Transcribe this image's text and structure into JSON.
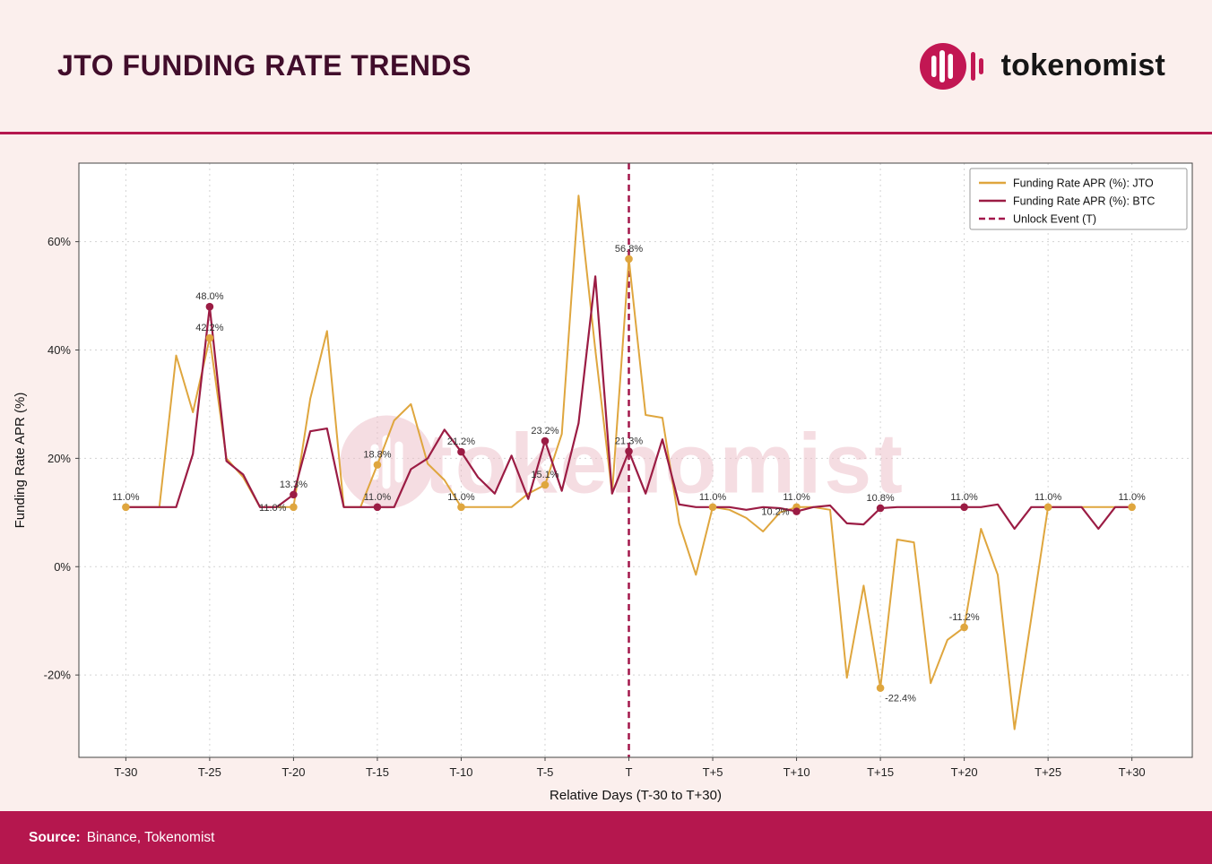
{
  "header": {
    "title": "JTO FUNDING RATE TRENDS",
    "brand": "tokenomist"
  },
  "footer": {
    "source_label": "Source:",
    "source_value": "Binance, Tokenomist"
  },
  "watermark": {
    "text": "tokenomist"
  },
  "colors": {
    "accent": "#B5174E",
    "brand": "#C21753",
    "title": "#410D2B",
    "jto": "#DFA63E",
    "btc": "#9B1C44",
    "unlock": "#A3174B",
    "watermark": "#ECBCC6",
    "grid": "#CCCCCC",
    "spine": "#444444",
    "tick_text": "#222222",
    "label_text": "#333333",
    "legend_border": "#999999"
  },
  "chart_data": {
    "type": "line",
    "title": "JTO Funding Rate Trends",
    "xlabel": "Relative Days (T-30 to T+30)",
    "ylabel": "Funding Rate APR (%)",
    "xlim": [
      -32.8,
      33.6
    ],
    "ylim": [
      -35.2,
      74.5
    ],
    "grid": true,
    "legend_position": "top-right",
    "x_tick_days": [
      -30,
      -25,
      -20,
      -15,
      -10,
      -5,
      0,
      5,
      10,
      15,
      20,
      25,
      30
    ],
    "x_tick_labels": [
      "T-30",
      "T-25",
      "T-20",
      "T-15",
      "T-10",
      "T-5",
      "T",
      "T+5",
      "T+10",
      "T+15",
      "T+20",
      "T+25",
      "T+30"
    ],
    "y_tick_values": [
      -20,
      0,
      20,
      40,
      60
    ],
    "y_tick_labels": [
      "-20%",
      "0%",
      "20%",
      "40%",
      "60%"
    ],
    "x": [
      -30,
      -29,
      -28,
      -27,
      -26,
      -25,
      -24,
      -23,
      -22,
      -21,
      -20,
      -19,
      -18,
      -17,
      -16,
      -15,
      -14,
      -13,
      -12,
      -11,
      -10,
      -9,
      -8,
      -7,
      -6,
      -5,
      -4,
      -3,
      -2,
      -1,
      0,
      1,
      2,
      3,
      4,
      5,
      6,
      7,
      8,
      9,
      10,
      11,
      12,
      13,
      14,
      15,
      16,
      17,
      18,
      19,
      20,
      21,
      22,
      23,
      24,
      25,
      26,
      27,
      28,
      29,
      30
    ],
    "series": [
      {
        "name": "Funding Rate APR (%): JTO",
        "color": "#DFA63E",
        "values": [
          11,
          11,
          11,
          39,
          28.5,
          42.2,
          20,
          16.5,
          11,
          11,
          11,
          31,
          43.5,
          11,
          11,
          18.8,
          27,
          30,
          19,
          16,
          11,
          11,
          11,
          11,
          13.5,
          15.1,
          24.5,
          68.5,
          40,
          13.5,
          56.8,
          28,
          27.5,
          8,
          -1.5,
          11,
          10.5,
          9,
          6.5,
          10,
          11,
          11,
          10.5,
          -20.5,
          -3.5,
          -22.4,
          5,
          4.5,
          -21.5,
          -13.5,
          -11.2,
          7,
          -1.5,
          -30,
          -9.5,
          11,
          11,
          11,
          11,
          11,
          11
        ],
        "labeled_points": [
          {
            "day": -30,
            "value": 11.0,
            "label": "11.0%",
            "pos": "above"
          },
          {
            "day": -25,
            "value": 42.2,
            "label": "42.2%",
            "pos": "above"
          },
          {
            "day": -20,
            "value": 11.0,
            "label": "11.0%",
            "pos": "left"
          },
          {
            "day": -15,
            "value": 18.8,
            "label": "18.8%",
            "pos": "above"
          },
          {
            "day": -10,
            "value": 11.0,
            "label": "11.0%",
            "pos": "above"
          },
          {
            "day": -5,
            "value": 15.1,
            "label": "15.1%",
            "pos": "above"
          },
          {
            "day": 0,
            "value": 56.8,
            "label": "56.8%",
            "pos": "above"
          },
          {
            "day": 5,
            "value": 11.0,
            "label": "11.0%",
            "pos": "above"
          },
          {
            "day": 10,
            "value": 11.0,
            "label": "11.0%",
            "pos": "above"
          },
          {
            "day": 15,
            "value": -22.4,
            "label": "-22.4%",
            "pos": "below"
          },
          {
            "day": 20,
            "value": -11.2,
            "label": "-11.2%",
            "pos": "above"
          },
          {
            "day": 25,
            "value": 11.0,
            "label": "11.0%",
            "pos": "above"
          },
          {
            "day": 30,
            "value": 11.0,
            "label": "11.0%",
            "pos": "above"
          }
        ]
      },
      {
        "name": "Funding Rate APR (%): BTC",
        "color": "#9B1C44",
        "values": [
          11,
          11,
          11,
          11,
          20.8,
          48,
          19.5,
          17,
          11,
          11,
          13.3,
          25,
          25.5,
          11,
          11,
          11,
          11,
          18,
          20,
          25.3,
          21.2,
          16.5,
          13.5,
          20.5,
          12.5,
          23.2,
          14,
          26.5,
          53.6,
          13.5,
          21.3,
          13.5,
          23.5,
          11.5,
          11,
          11,
          11,
          10.5,
          11,
          10.8,
          10.2,
          11,
          11.3,
          8,
          7.8,
          10.8,
          11,
          11,
          11,
          11,
          11,
          11,
          11.5,
          7,
          11,
          11,
          11,
          11,
          7,
          11,
          11
        ],
        "labeled_points": [
          {
            "day": -25,
            "value": 48.0,
            "label": "48.0%",
            "pos": "above"
          },
          {
            "day": -20,
            "value": 13.3,
            "label": "13.3%",
            "pos": "above"
          },
          {
            "day": -15,
            "value": 11.0,
            "label": "11.0%",
            "pos": "above"
          },
          {
            "day": -10,
            "value": 21.2,
            "label": "21.2%",
            "pos": "above"
          },
          {
            "day": -5,
            "value": 23.2,
            "label": "23.2%",
            "pos": "above"
          },
          {
            "day": 0,
            "value": 21.3,
            "label": "21.3%",
            "pos": "above"
          },
          {
            "day": 10,
            "value": 10.2,
            "label": "10.2%",
            "pos": "left"
          },
          {
            "day": 15,
            "value": 10.8,
            "label": "10.8%",
            "pos": "above"
          },
          {
            "day": 20,
            "value": 11.0,
            "label": "11.0%",
            "pos": "above"
          }
        ]
      }
    ],
    "unlock_event": {
      "day": 0,
      "label": "Unlock Event (T)"
    },
    "legend": [
      {
        "label": "Funding Rate APR (%): JTO",
        "color": "#DFA63E",
        "dash": false
      },
      {
        "label": "Funding Rate APR (%): BTC",
        "color": "#9B1C44",
        "dash": false
      },
      {
        "label": "Unlock Event (T)",
        "color": "#A3174B",
        "dash": true
      }
    ]
  }
}
